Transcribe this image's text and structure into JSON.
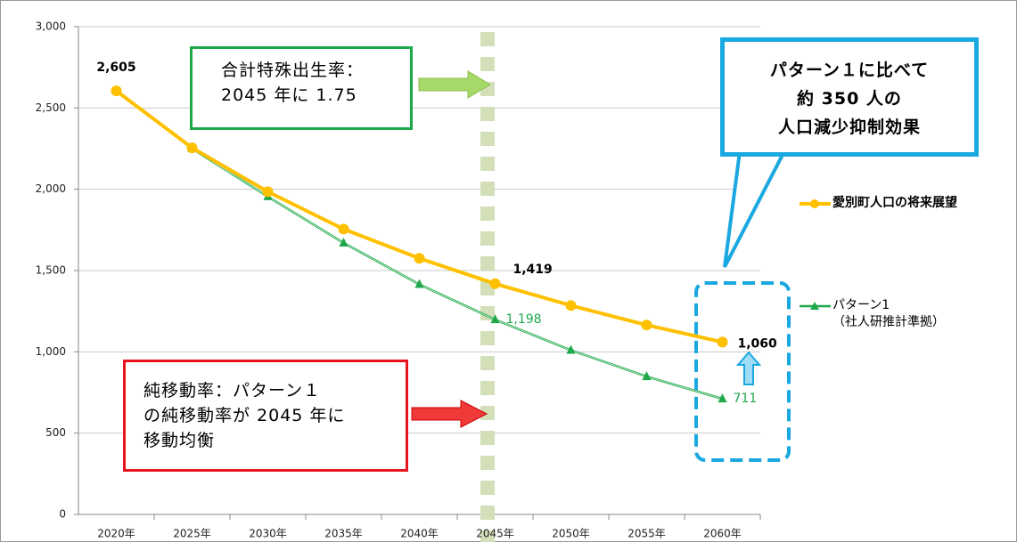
{
  "chart_data": {
    "type": "line",
    "categories": [
      "2020年",
      "2025年",
      "2030年",
      "2035年",
      "2040年",
      "2045年",
      "2050年",
      "2055年",
      "2060年"
    ],
    "series": [
      {
        "name": "愛別町人口の将来展望",
        "color": "#ffc000",
        "marker": "circle",
        "values": [
          2605,
          2255,
          1985,
          1755,
          1575,
          1419,
          1285,
          1165,
          1060
        ],
        "value_labels": [
          "2,605",
          null,
          null,
          null,
          null,
          "1,419",
          null,
          null,
          "1,060"
        ]
      },
      {
        "name": "パターン1\n（社人研推計準拠）",
        "color": "#1ea84a",
        "marker": "triangle",
        "values": [
          2605,
          2250,
          1955,
          1670,
          1415,
          1198,
          1010,
          848,
          711
        ],
        "value_labels": [
          null,
          null,
          null,
          null,
          null,
          "1,198",
          null,
          null,
          "711"
        ]
      }
    ],
    "ylim": [
      0,
      3000
    ],
    "yticks": [
      0,
      500,
      {
        "value": 1000,
        "label": "1,000"
      },
      {
        "value": 1500,
        "label": "1,500"
      },
      {
        "value": 2000,
        "label": "2,000"
      },
      {
        "value": 2500,
        "label": "2,500"
      },
      {
        "value": 3000,
        "label": "3,000"
      }
    ],
    "grid": true,
    "annotations": [
      "合計特殊出生率：\n2045 年に 1.75",
      "純移動率：パターン１\nの純移動率が 2045 年に\n移動均衡",
      "パターン１に比べて\n約 350 人の\n人口減少抑制効果"
    ]
  }
}
